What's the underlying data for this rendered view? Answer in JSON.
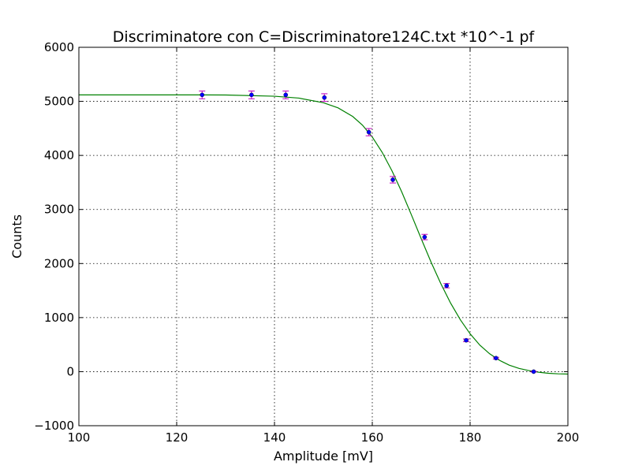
{
  "chart_data": {
    "type": "scatter",
    "title": "Discriminatore con C=Discriminatore124C.txt *10^-1 pf",
    "xlabel": "Amplitude [mV]",
    "ylabel": "Counts",
    "xlim": [
      100,
      200
    ],
    "ylim": [
      -1000,
      6000
    ],
    "xticks": [
      100,
      120,
      140,
      160,
      180,
      200
    ],
    "yticks": [
      -1000,
      0,
      1000,
      2000,
      3000,
      4000,
      5000,
      6000
    ],
    "xtick_labels": [
      "100",
      "120",
      "140",
      "160",
      "180",
      "200"
    ],
    "ytick_labels": [
      "−1000",
      "0",
      "1000",
      "2000",
      "3000",
      "4000",
      "5000",
      "6000"
    ],
    "grid": true,
    "series": [
      {
        "kind": "errorbar-points",
        "marker_color": "#0000ff",
        "errorbar_color": "#bf00bf",
        "points": [
          {
            "x": 125.2,
            "y": 5120,
            "err": 72
          },
          {
            "x": 135.3,
            "y": 5120,
            "err": 72
          },
          {
            "x": 142.3,
            "y": 5120,
            "err": 72
          },
          {
            "x": 150.2,
            "y": 5070,
            "err": 71
          },
          {
            "x": 159.3,
            "y": 4430,
            "err": 67
          },
          {
            "x": 164.2,
            "y": 3550,
            "err": 60
          },
          {
            "x": 170.7,
            "y": 2490,
            "err": 50
          },
          {
            "x": 175.2,
            "y": 1590,
            "err": 40
          },
          {
            "x": 179.2,
            "y": 580,
            "err": 24
          },
          {
            "x": 185.3,
            "y": 250,
            "err": 16
          },
          {
            "x": 193.0,
            "y": 0,
            "err": 5
          }
        ]
      },
      {
        "kind": "fit-curve",
        "color": "#008000",
        "x": [
          100,
          110,
          120,
          130,
          140,
          145,
          150,
          153,
          156,
          158,
          160,
          162,
          164,
          166,
          168,
          170,
          172,
          174,
          176,
          178,
          180,
          182,
          184,
          186,
          188,
          190,
          192,
          194,
          196,
          198,
          200
        ],
        "y": [
          5120,
          5120,
          5120,
          5118,
          5095,
          5060,
          4975,
          4880,
          4720,
          4560,
          4340,
          4060,
          3720,
          3330,
          2900,
          2460,
          2030,
          1630,
          1270,
          960,
          700,
          490,
          330,
          210,
          120,
          60,
          20,
          -10,
          -30,
          -40,
          -45
        ]
      }
    ]
  }
}
